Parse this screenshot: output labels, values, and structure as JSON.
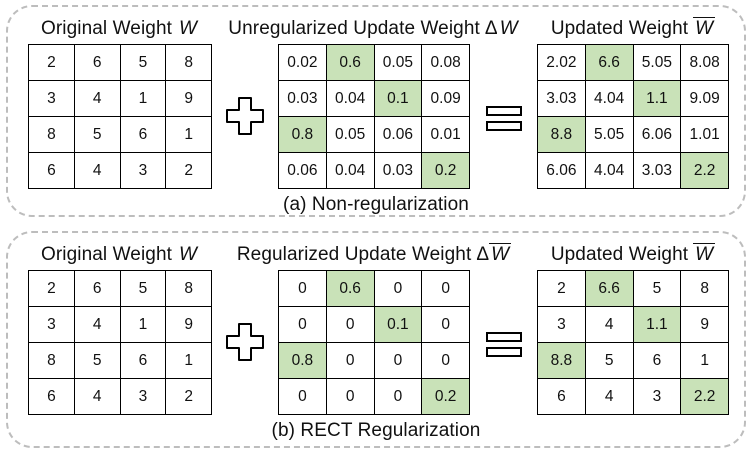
{
  "colors": {
    "highlight": "#C9E2B8",
    "panel_border": "#BDBDBD",
    "grid": "#000000"
  },
  "panels": [
    {
      "caption": "(a) Non-regularization",
      "groups": [
        {
          "title": {
            "prefix": "Original Weight",
            "delta": "",
            "symbol": "W",
            "overline": false
          },
          "matrix": [
            [
              "2",
              "6",
              "5",
              "8"
            ],
            [
              "3",
              "4",
              "1",
              "9"
            ],
            [
              "8",
              "5",
              "6",
              "1"
            ],
            [
              "6",
              "4",
              "3",
              "2"
            ]
          ],
          "highlights": []
        },
        {
          "title": {
            "prefix": "Unregularized Update Weight",
            "delta": "Δ",
            "symbol": "W",
            "overline": false
          },
          "matrix": [
            [
              "0.02",
              "0.6",
              "0.05",
              "0.08"
            ],
            [
              "0.03",
              "0.04",
              "0.1",
              "0.09"
            ],
            [
              "0.8",
              "0.05",
              "0.06",
              "0.01"
            ],
            [
              "0.06",
              "0.04",
              "0.03",
              "0.2"
            ]
          ],
          "highlights": [
            [
              0,
              1
            ],
            [
              1,
              2
            ],
            [
              2,
              0
            ],
            [
              3,
              3
            ]
          ]
        },
        {
          "title": {
            "prefix": "Updated Weight",
            "delta": "",
            "symbol": "W",
            "overline": true
          },
          "matrix": [
            [
              "2.02",
              "6.6",
              "5.05",
              "8.08"
            ],
            [
              "3.03",
              "4.04",
              "1.1",
              "9.09"
            ],
            [
              "8.8",
              "5.05",
              "6.06",
              "1.01"
            ],
            [
              "6.06",
              "4.04",
              "3.03",
              "2.2"
            ]
          ],
          "highlights": [
            [
              0,
              1
            ],
            [
              1,
              2
            ],
            [
              2,
              0
            ],
            [
              3,
              3
            ]
          ]
        }
      ]
    },
    {
      "caption": "(b) RECT Regularization",
      "groups": [
        {
          "title": {
            "prefix": "Original Weight",
            "delta": "",
            "symbol": "W",
            "overline": false
          },
          "matrix": [
            [
              "2",
              "6",
              "5",
              "8"
            ],
            [
              "3",
              "4",
              "1",
              "9"
            ],
            [
              "8",
              "5",
              "6",
              "1"
            ],
            [
              "6",
              "4",
              "3",
              "2"
            ]
          ],
          "highlights": []
        },
        {
          "title": {
            "prefix": "Regularized Update Weight",
            "delta": "Δ",
            "symbol": "W",
            "overline": true
          },
          "matrix": [
            [
              "0",
              "0.6",
              "0",
              "0"
            ],
            [
              "0",
              "0",
              "0.1",
              "0"
            ],
            [
              "0.8",
              "0",
              "0",
              "0"
            ],
            [
              "0",
              "0",
              "0",
              "0.2"
            ]
          ],
          "highlights": [
            [
              0,
              1
            ],
            [
              1,
              2
            ],
            [
              2,
              0
            ],
            [
              3,
              3
            ]
          ]
        },
        {
          "title": {
            "prefix": "Updated Weight",
            "delta": "",
            "symbol": "W",
            "overline": true
          },
          "matrix": [
            [
              "2",
              "6.6",
              "5",
              "8"
            ],
            [
              "3",
              "4",
              "1.1",
              "9"
            ],
            [
              "8.8",
              "5",
              "6",
              "1"
            ],
            [
              "6",
              "4",
              "3",
              "2.2"
            ]
          ],
          "highlights": [
            [
              0,
              1
            ],
            [
              1,
              2
            ],
            [
              2,
              0
            ],
            [
              3,
              3
            ]
          ]
        }
      ]
    }
  ]
}
